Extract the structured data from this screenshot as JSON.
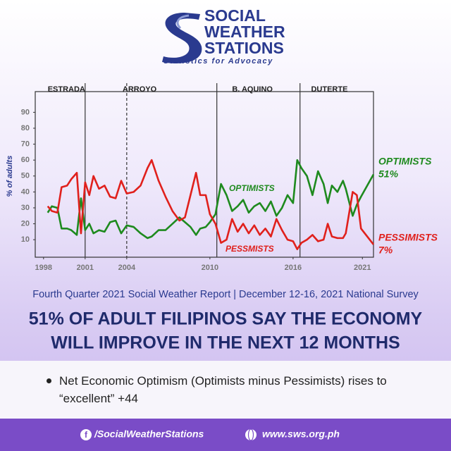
{
  "logo": {
    "lines": [
      "SOCIAL",
      "WEATHER",
      "STATIONS"
    ],
    "tagline": "Statistics for Advocacy"
  },
  "chart_data": {
    "type": "line",
    "eras": [
      {
        "name": "ESTRADA",
        "x": 1998.3
      },
      {
        "name": "ARROYO",
        "x": 2003.7
      },
      {
        "name": "B. AQUINO",
        "x": 2011.6
      },
      {
        "name": "DUTERTE",
        "x": 2017.3
      }
    ],
    "dividers": [
      {
        "x": 2001.0,
        "style": "solid"
      },
      {
        "x": 2004.0,
        "style": "dashed"
      },
      {
        "x": 2010.5,
        "style": "solid"
      },
      {
        "x": 2016.5,
        "style": "solid"
      }
    ],
    "y_label": "% of adults",
    "x": [
      1998.3,
      1998.6,
      1999.0,
      1999.3,
      1999.7,
      2000.0,
      2000.4,
      2000.7,
      2001.0,
      2001.3,
      2001.6,
      2002.0,
      2002.4,
      2002.8,
      2003.2,
      2003.6,
      2004.0,
      2004.5,
      2005.0,
      2005.5,
      2005.8,
      2006.3,
      2006.8,
      2007.3,
      2007.8,
      2008.2,
      2008.6,
      2009.0,
      2009.3,
      2009.7,
      2010.0,
      2010.4,
      2010.8,
      2011.2,
      2011.6,
      2012.0,
      2012.4,
      2012.8,
      2013.2,
      2013.6,
      2014.0,
      2014.4,
      2014.8,
      2015.2,
      2015.6,
      2016.0,
      2016.3,
      2016.6,
      2017.0,
      2017.4,
      2017.8,
      2018.2,
      2018.5,
      2018.8,
      2019.2,
      2019.6,
      2019.8,
      2020.3,
      2020.6,
      2020.9,
      2021.8
    ],
    "series": [
      {
        "name": "OPTIMISTS",
        "color": "#1e8a1e",
        "values": [
          27,
          31,
          30,
          17,
          17,
          16,
          13,
          36,
          16,
          20,
          14,
          16,
          15,
          21,
          22,
          14,
          19,
          18,
          14,
          11,
          12,
          16,
          16,
          20,
          24,
          21,
          18,
          13,
          17,
          18,
          21,
          26,
          45,
          38,
          28,
          31,
          35,
          27,
          31,
          33,
          28,
          34,
          25,
          30,
          38,
          33,
          60,
          55,
          50,
          38,
          53,
          45,
          33,
          44,
          40,
          47,
          42,
          25,
          32,
          37,
          51
        ],
        "value_labels": [
          null,
          null,
          null,
          null,
          null,
          null,
          null,
          null,
          null,
          null,
          null,
          null,
          null,
          null,
          null,
          null,
          null,
          null,
          null,
          null,
          null,
          null,
          null,
          null,
          null,
          null,
          null,
          null,
          null,
          null,
          null,
          null,
          null,
          null,
          null,
          null,
          null,
          null,
          null,
          null,
          null,
          null,
          null,
          null,
          null,
          null,
          null,
          null,
          null,
          null,
          null,
          null,
          null,
          null,
          null,
          null,
          null,
          null,
          null,
          null,
          "51%"
        ]
      },
      {
        "name": "PESSIMISTS",
        "color": "#e0201c",
        "values": [
          31,
          28,
          27,
          43,
          44,
          48,
          52,
          14,
          46,
          38,
          50,
          42,
          44,
          37,
          36,
          47,
          39,
          40,
          44,
          55,
          60,
          47,
          37,
          28,
          22,
          24,
          38,
          52,
          38,
          38,
          26,
          20,
          8,
          10,
          23,
          15,
          20,
          14,
          19,
          13,
          17,
          12,
          23,
          16,
          10,
          9,
          4,
          8,
          10,
          13,
          9,
          10,
          20,
          12,
          11,
          11,
          14,
          40,
          38,
          17,
          7
        ],
        "value_labels": [
          null,
          null,
          null,
          null,
          null,
          null,
          null,
          null,
          null,
          null,
          null,
          null,
          null,
          null,
          null,
          null,
          null,
          null,
          null,
          null,
          null,
          null,
          null,
          null,
          null,
          null,
          null,
          null,
          null,
          null,
          null,
          null,
          null,
          null,
          null,
          null,
          null,
          null,
          null,
          null,
          null,
          null,
          null,
          null,
          null,
          null,
          null,
          null,
          null,
          null,
          null,
          null,
          null,
          null,
          null,
          null,
          null,
          null,
          null,
          null,
          "7%"
        ]
      }
    ],
    "annotations": [
      "OPTIMISTS",
      "PESSMISTS"
    ],
    "xlim": [
      1997.4,
      2021.8
    ],
    "xticks": [
      1998,
      2001,
      2004,
      2010,
      2016,
      2021
    ],
    "ylim": [
      -1,
      103
    ],
    "yticks": [
      10,
      20,
      30,
      40,
      50,
      60,
      70,
      80,
      90
    ]
  },
  "report_line": "Fourth Quarter 2021 Social Weather Report | December 12-16, 2021 National Survey",
  "headline": [
    "51% OF ADULT FILIPINOS SAY THE ECONOMY",
    "WILL IMPROVE IN THE NEXT 12 MONTHS"
  ],
  "bullet": "Net Economic Optimism (Optimists minus Pessimists) rises to “excellent” +44",
  "footer": {
    "facebook": "/SocialWeatherStations",
    "website": "www.sws.org.ph"
  }
}
